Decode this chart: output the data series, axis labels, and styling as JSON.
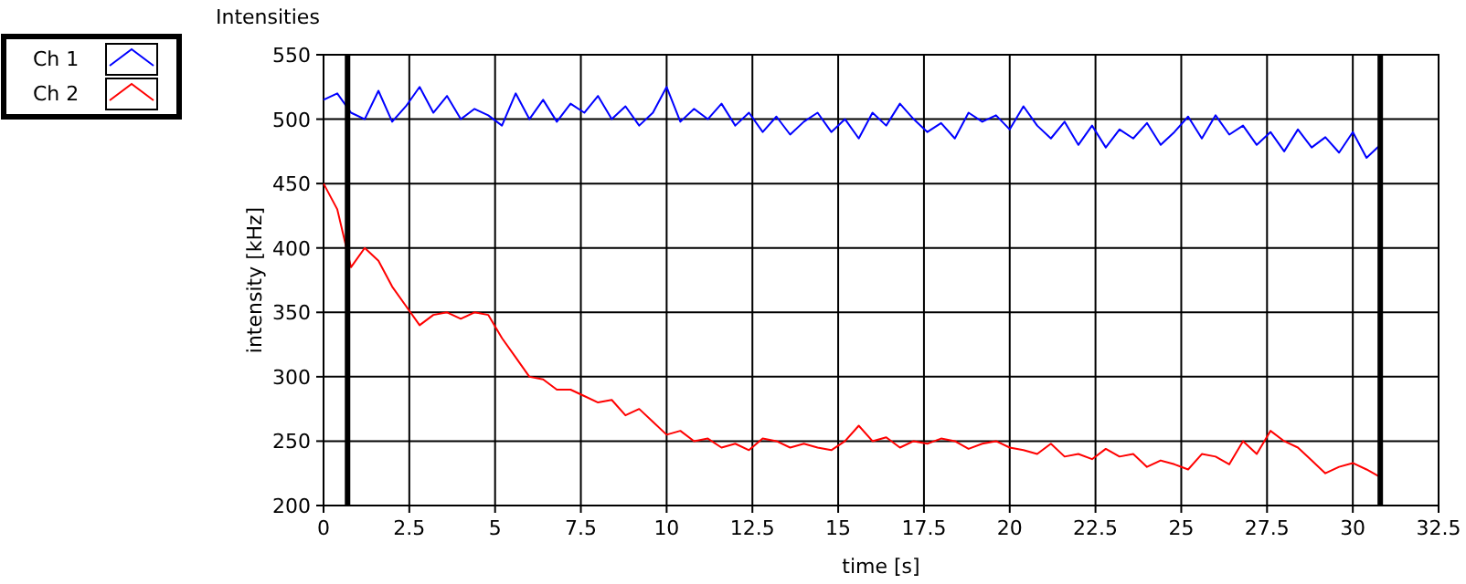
{
  "chart_data": {
    "type": "line",
    "title": "Intensities",
    "xlabel": "time [s]",
    "ylabel": "intensity [kHz]",
    "x": [
      0,
      0.4,
      0.8,
      1.2,
      1.6,
      2.0,
      2.4,
      2.8,
      3.2,
      3.6,
      4.0,
      4.4,
      4.8,
      5.2,
      5.6,
      6.0,
      6.4,
      6.8,
      7.2,
      7.6,
      8.0,
      8.4,
      8.8,
      9.2,
      9.6,
      10.0,
      10.4,
      10.8,
      11.2,
      11.6,
      12.0,
      12.4,
      12.8,
      13.2,
      13.6,
      14.0,
      14.4,
      14.8,
      15.2,
      15.6,
      16.0,
      16.4,
      16.8,
      17.2,
      17.6,
      18.0,
      18.4,
      18.8,
      19.2,
      19.6,
      20.0,
      20.4,
      20.8,
      21.2,
      21.6,
      22.0,
      22.4,
      22.8,
      23.2,
      23.6,
      24.0,
      24.4,
      24.8,
      25.2,
      25.6,
      26.0,
      26.4,
      26.8,
      27.2,
      27.6,
      28.0,
      28.4,
      28.8,
      29.2,
      29.6,
      30.0,
      30.4,
      30.8
    ],
    "series": [
      {
        "name": "Ch 1",
        "color": "#0000ff",
        "values": [
          515,
          520,
          505,
          500,
          522,
          498,
          510,
          525,
          505,
          518,
          500,
          508,
          503,
          495,
          520,
          500,
          515,
          498,
          512,
          505,
          518,
          500,
          510,
          495,
          505,
          525,
          498,
          508,
          500,
          512,
          495,
          505,
          490,
          502,
          488,
          498,
          505,
          490,
          500,
          485,
          505,
          495,
          512,
          500,
          490,
          497,
          485,
          505,
          498,
          503,
          492,
          510,
          495,
          485,
          498,
          480,
          495,
          478,
          492,
          485,
          497,
          480,
          490,
          502,
          485,
          503,
          488,
          495,
          480,
          490,
          475,
          492,
          478,
          486,
          474,
          490,
          470,
          480
        ]
      },
      {
        "name": "Ch 2",
        "color": "#ff0000",
        "values": [
          450,
          430,
          385,
          400,
          390,
          370,
          355,
          340,
          348,
          350,
          345,
          350,
          348,
          330,
          315,
          300,
          298,
          290,
          290,
          285,
          280,
          282,
          270,
          275,
          265,
          255,
          258,
          250,
          252,
          245,
          248,
          243,
          252,
          250,
          245,
          248,
          245,
          243,
          250,
          262,
          250,
          253,
          245,
          250,
          248,
          252,
          250,
          244,
          248,
          250,
          245,
          243,
          240,
          248,
          238,
          240,
          236,
          244,
          238,
          240,
          230,
          235,
          232,
          228,
          240,
          238,
          232,
          250,
          240,
          258,
          250,
          245,
          235,
          225,
          230,
          233,
          228,
          222
        ]
      }
    ],
    "xlim": [
      0,
      32.5
    ],
    "xticks": [
      0,
      2.5,
      5,
      7.5,
      10,
      12.5,
      15,
      17.5,
      20,
      22.5,
      25,
      27.5,
      30,
      32.5
    ],
    "ylim": [
      200,
      550
    ],
    "yticks": [
      200,
      250,
      300,
      350,
      400,
      450,
      500,
      550
    ],
    "grid": true,
    "legend": "top left",
    "line_style": "solid",
    "marker": "none",
    "ref_lines": [
      {
        "axis": "x",
        "value": 0.7,
        "color": "#000000"
      },
      {
        "axis": "x",
        "value": 30.8,
        "color": "#000000"
      }
    ]
  }
}
